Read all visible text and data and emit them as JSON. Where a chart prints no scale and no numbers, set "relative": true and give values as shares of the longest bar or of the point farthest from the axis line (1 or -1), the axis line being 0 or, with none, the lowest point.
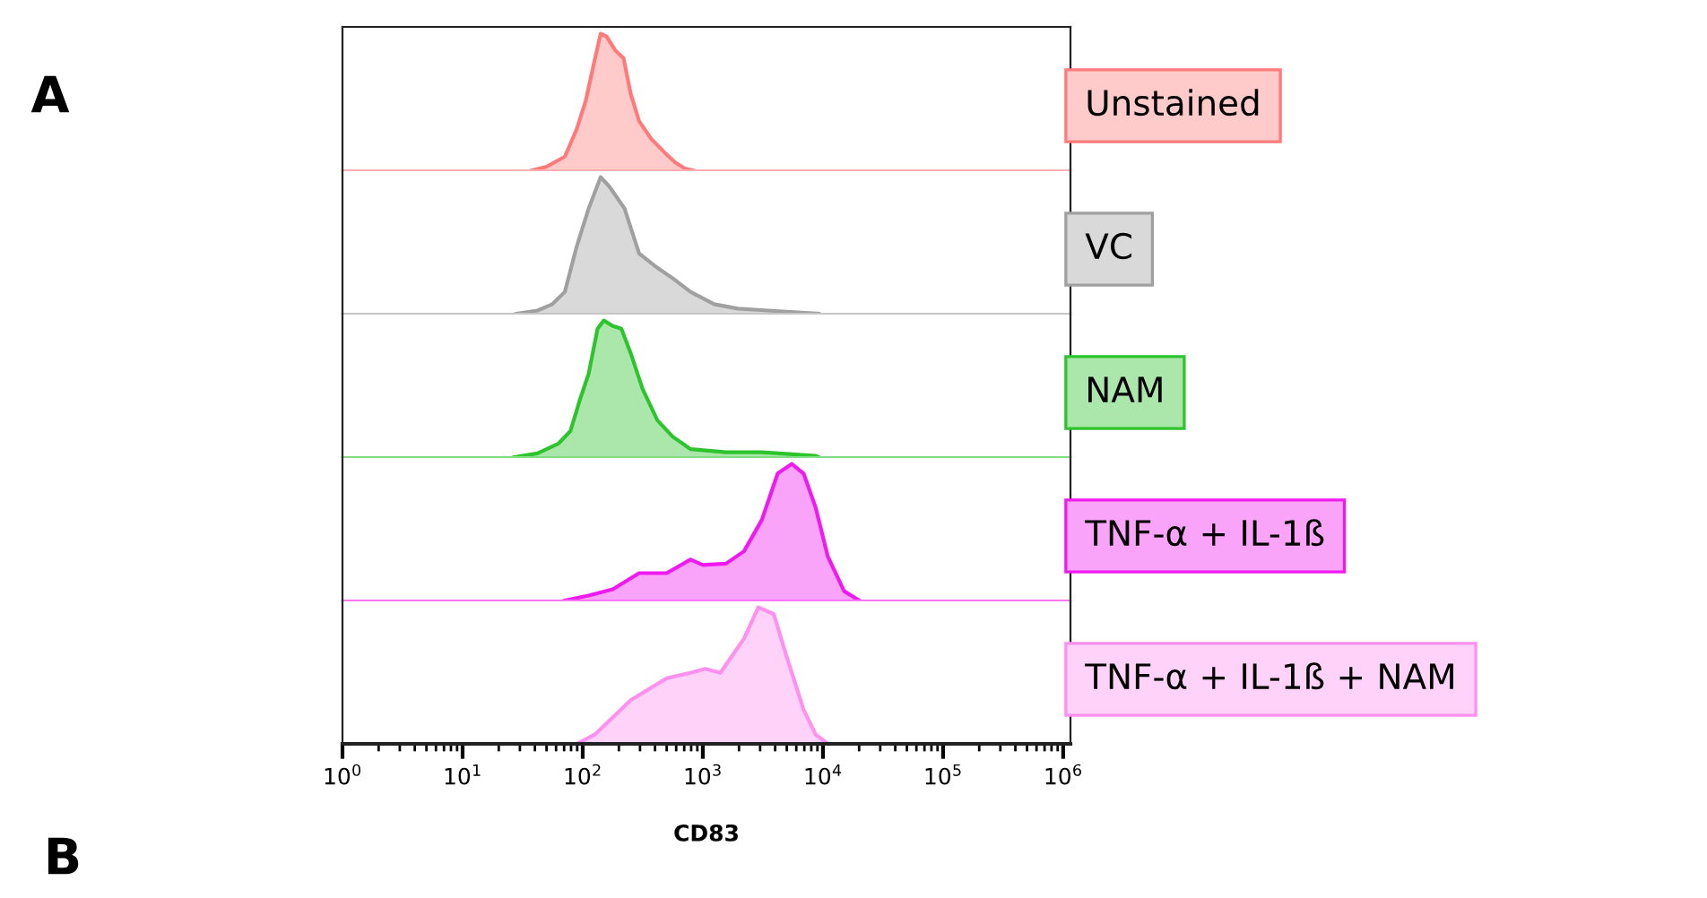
{
  "chart_data": [
    {
      "type": "area",
      "relative": true,
      "log": "x",
      "xlim": [
        1,
        1150000
      ],
      "tick_labels": false,
      "grid": false,
      "annotations": [
        "A"
      ],
      "series": [
        {
          "name": "Unstained",
          "color": "#ff7a7a",
          "x": [
            38,
            50,
            71,
            89,
            106,
            126,
            141,
            158,
            186,
            219,
            251,
            295,
            372,
            468,
            589,
            708,
            832
          ],
          "values": [
            0,
            0.026,
            0.1,
            0.3,
            0.51,
            0.81,
            1.0,
            0.98,
            0.88,
            0.82,
            0.56,
            0.36,
            0.23,
            0.14,
            0.057,
            0.013,
            0
          ]
        }
      ]
    },
    {
      "type": "area",
      "relative": true,
      "log": "x",
      "xlim": [
        1,
        1150000
      ],
      "tick_labels": false,
      "grid": false,
      "series": [
        {
          "name": "VC",
          "color": "#a0a0a0",
          "x": [
            28,
            42,
            56,
            71,
            89,
            112,
            141,
            167,
            223,
            295,
            398,
            560,
            790,
            1240,
            1960,
            3490,
            9200
          ],
          "values": [
            0,
            0.023,
            0.07,
            0.16,
            0.49,
            0.77,
            1.0,
            0.93,
            0.77,
            0.44,
            0.35,
            0.26,
            0.16,
            0.07,
            0.037,
            0.023,
            0
          ]
        }
      ]
    },
    {
      "type": "area",
      "relative": true,
      "log": "x",
      "xlim": [
        1,
        1150000
      ],
      "tick_labels": false,
      "grid": false,
      "series": [
        {
          "name": "NAM",
          "color": "#2ec42e",
          "x": [
            27,
            42,
            63,
            79,
            94,
            112,
            133,
            150,
            178,
            210,
            251,
            315,
            418,
            560,
            790,
            1560,
            3100,
            8700,
            9200
          ],
          "values": [
            0,
            0.027,
            0.1,
            0.19,
            0.41,
            0.61,
            0.94,
            1.0,
            0.96,
            0.94,
            0.76,
            0.5,
            0.27,
            0.15,
            0.058,
            0.035,
            0.035,
            0.009,
            0
          ]
        }
      ]
    },
    {
      "type": "area",
      "relative": true,
      "log": "x",
      "xlim": [
        1,
        1150000
      ],
      "tick_labels": false,
      "grid": false,
      "series": [
        {
          "name": "TNF-α + IL-1ß",
          "color": "#f01af0",
          "x": [
            71,
            112,
            178,
            295,
            500,
            790,
            1000,
            1560,
            2200,
            3100,
            4200,
            5500,
            6900,
            8700,
            11000,
            15000,
            20000
          ],
          "values": [
            0,
            0.036,
            0.082,
            0.2,
            0.2,
            0.3,
            0.26,
            0.27,
            0.36,
            0.59,
            0.93,
            1.0,
            0.93,
            0.68,
            0.32,
            0.068,
            0
          ]
        }
      ]
    },
    {
      "type": "area",
      "relative": true,
      "log": "x",
      "xlim": [
        1,
        1150000
      ],
      "tick_labels": "x",
      "grid": false,
      "xlabel": "CD83",
      "annotations": [
        "B"
      ],
      "xticks": [
        {
          "value": 1,
          "label": "10$^{0}$"
        },
        {
          "value": 10,
          "label": "10$^{1}$"
        },
        {
          "value": 100,
          "label": "10$^{2}$"
        },
        {
          "value": 1000,
          "label": "10$^{3}$"
        },
        {
          "value": 10000,
          "label": "10$^{4}$"
        },
        {
          "value": 100000,
          "label": "10$^{5}$"
        },
        {
          "value": 1000000,
          "label": "10$^{6}$"
        }
      ],
      "series": [
        {
          "name": "TNF-α + IL-1ß + NAM",
          "color": "#ff90f0",
          "x": [
            89,
            126,
            251,
            500,
            790,
            1050,
            1400,
            2200,
            2900,
            3900,
            4900,
            6900,
            8700,
            11000
          ],
          "values": [
            0,
            0.068,
            0.32,
            0.48,
            0.52,
            0.55,
            0.52,
            0.77,
            1.0,
            0.95,
            0.66,
            0.25,
            0.068,
            0
          ]
        }
      ]
    }
  ]
}
